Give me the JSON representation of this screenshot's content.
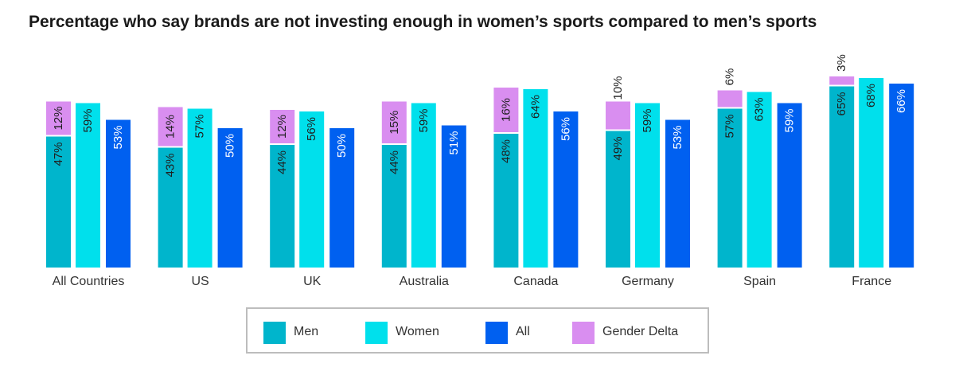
{
  "chart_data": {
    "type": "bar",
    "title": "Percentage who say brands are not investing enough in women’s sports compared to men’s sports",
    "categories": [
      "All Countries",
      "US",
      "UK",
      "Australia",
      "Canada",
      "Germany",
      "Spain",
      "France"
    ],
    "series": [
      {
        "name": "Men",
        "color": "#00b5cc",
        "values": [
          47,
          43,
          44,
          44,
          48,
          49,
          57,
          65
        ],
        "labels": [
          "47%",
          "43%",
          "44%",
          "44%",
          "48%",
          "49%",
          "57%",
          "65%"
        ]
      },
      {
        "name": "Gender Delta",
        "color": "#d98ef0",
        "values": [
          12,
          14,
          12,
          15,
          16,
          10,
          6,
          3
        ],
        "labels": [
          "12%",
          "14%",
          "12%",
          "15%",
          "16%",
          "10%",
          "6%",
          "3%"
        ]
      },
      {
        "name": "Women",
        "color": "#00e0ec",
        "values": [
          59,
          57,
          56,
          59,
          64,
          59,
          63,
          68
        ],
        "labels": [
          "59%",
          "57%",
          "56%",
          "59%",
          "64%",
          "59%",
          "63%",
          "68%"
        ]
      },
      {
        "name": "All",
        "color": "#0060f0",
        "values": [
          53,
          50,
          50,
          51,
          56,
          53,
          59,
          66
        ],
        "labels": [
          "53%",
          "50%",
          "50%",
          "51%",
          "56%",
          "53%",
          "59%",
          "66%"
        ]
      }
    ],
    "legend": {
      "position": "bottom",
      "items": [
        {
          "name": "Men",
          "color": "#00b5cc"
        },
        {
          "name": "Women",
          "color": "#00e0ec"
        },
        {
          "name": "All",
          "color": "#0060f0"
        },
        {
          "name": "Gender Delta",
          "color": "#d98ef0"
        }
      ]
    },
    "ylim": [
      0,
      75
    ],
    "grid": false
  }
}
